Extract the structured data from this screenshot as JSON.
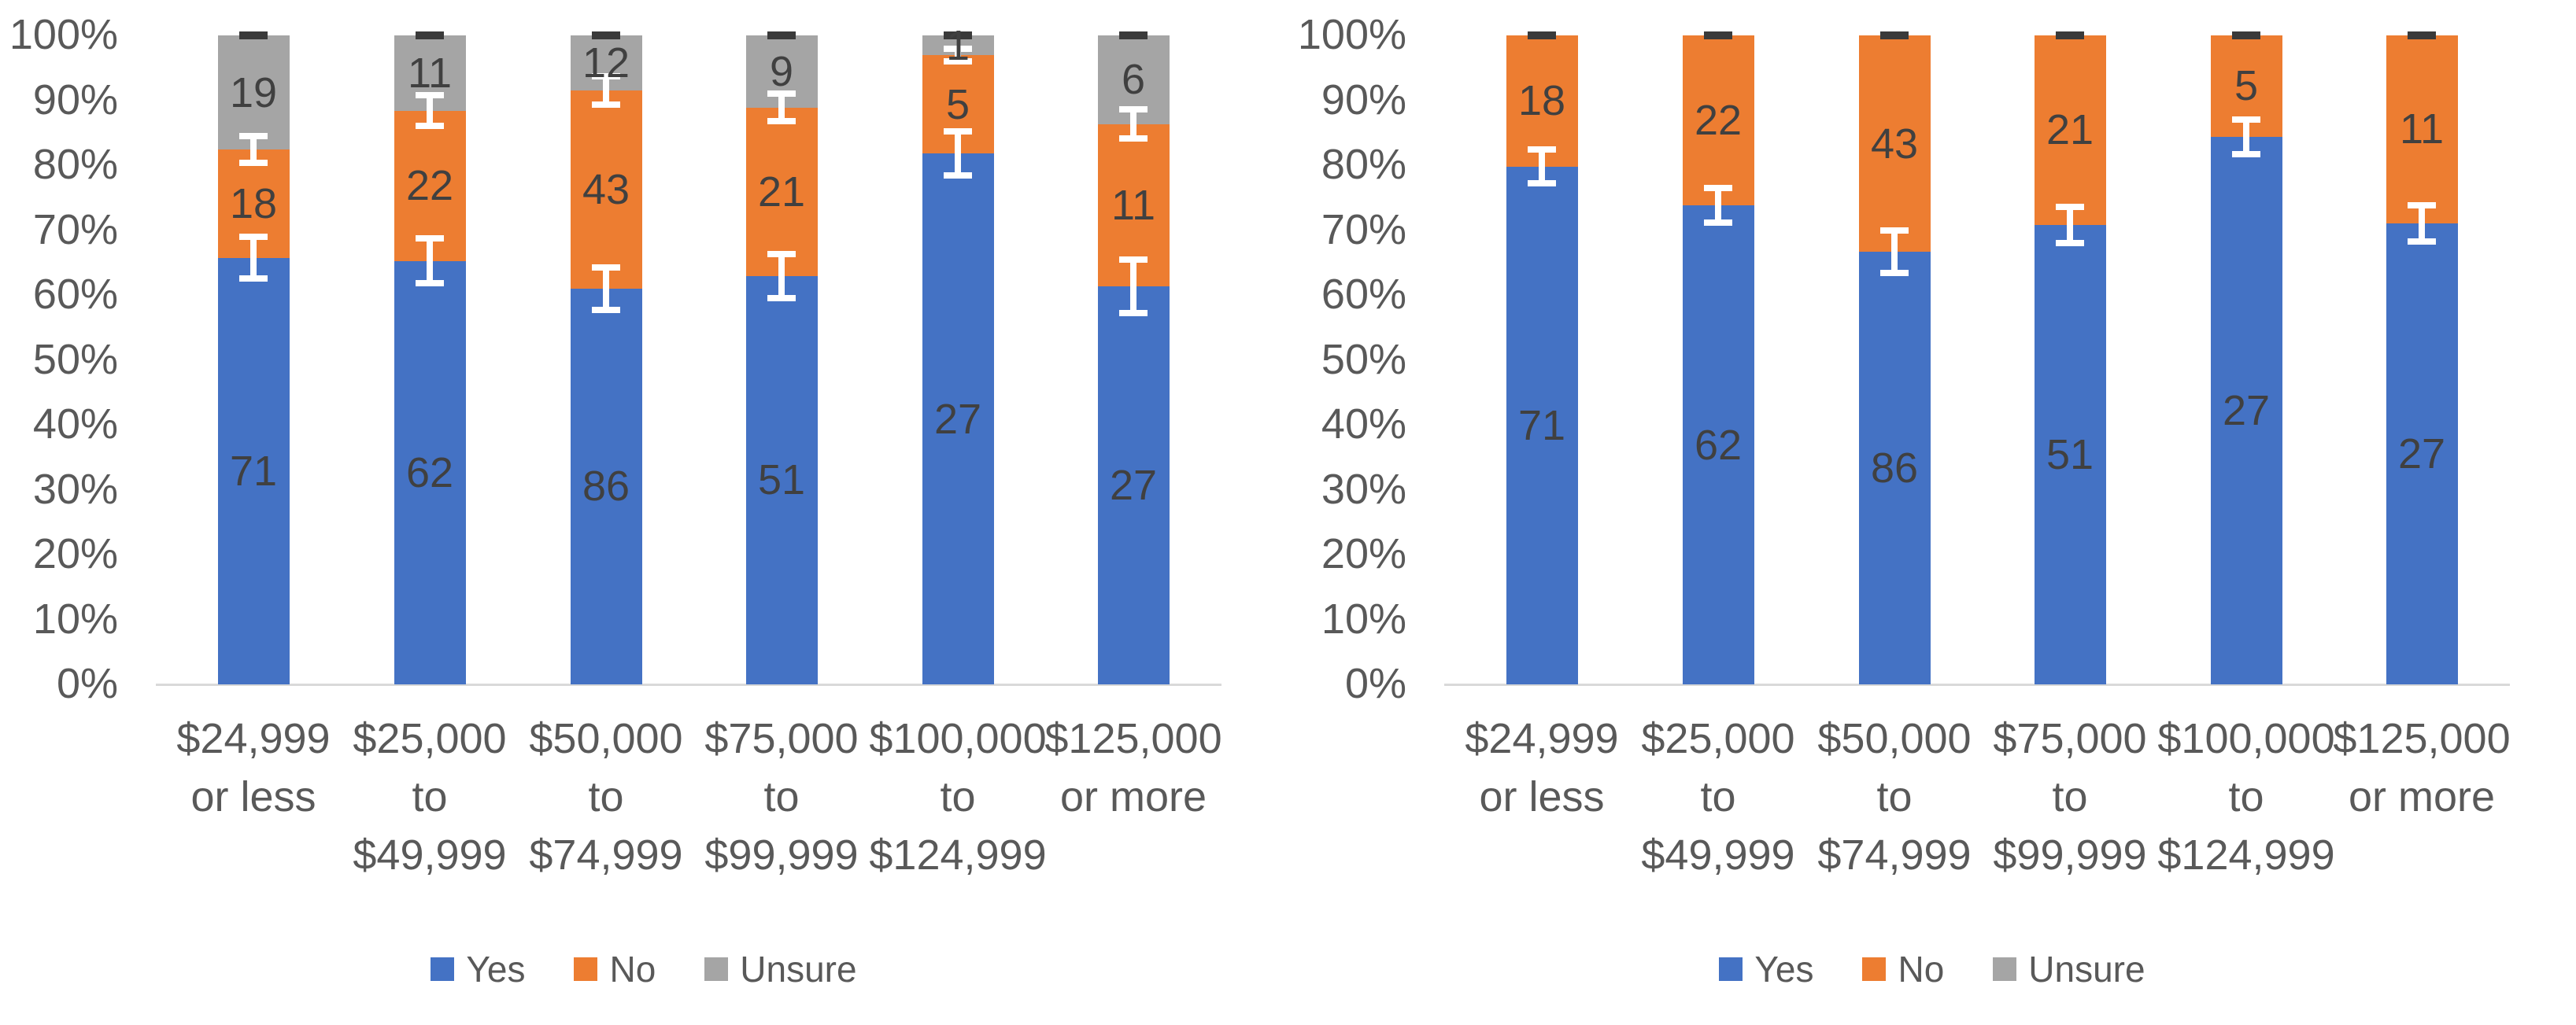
{
  "figure": {
    "background": "#ffffff",
    "axis_label_color": "#595959",
    "value_label_color": "#404040",
    "baseline_color": "#d9d9d9",
    "error_bar_color": "#ffffff",
    "top_cap_color": "#3a3a3a"
  },
  "y_axis": {
    "ticks": [
      "0%",
      "10%",
      "20%",
      "30%",
      "40%",
      "50%",
      "60%",
      "70%",
      "80%",
      "90%",
      "100%"
    ]
  },
  "legend": {
    "items": [
      {
        "label": "Yes",
        "color": "#4472C4"
      },
      {
        "label": "No",
        "color": "#ED7D31"
      },
      {
        "label": "Unsure",
        "color": "#A5A5A5"
      }
    ]
  },
  "chart_data": [
    {
      "type": "bar",
      "subtype": "stacked-100pct",
      "position": "left",
      "title": "",
      "xlabel": "",
      "ylabel": "",
      "ylim": [
        "0%",
        "100%"
      ],
      "grid": false,
      "legend_position": "bottom",
      "categories": [
        [
          "$24,999",
          "or less"
        ],
        [
          "$25,000",
          "to",
          "$49,999"
        ],
        [
          "$50,000",
          "to",
          "$74,999"
        ],
        [
          "$75,000",
          "to",
          "$99,999"
        ],
        [
          "$100,000",
          "to",
          "$124,999"
        ],
        [
          "$125,000",
          "or more"
        ]
      ],
      "series": [
        {
          "name": "Yes",
          "color": "#4472C4",
          "show_labels": true,
          "values": [
            71,
            62,
            86,
            51,
            27,
            27
          ]
        },
        {
          "name": "No",
          "color": "#ED7D31",
          "show_labels": true,
          "values": [
            18,
            22,
            43,
            21,
            5,
            11
          ]
        },
        {
          "name": "Unsure",
          "color": "#A5A5A5",
          "show_labels": true,
          "values": [
            19,
            11,
            12,
            9,
            1,
            6
          ]
        }
      ],
      "note": "segments drawn as value/column-total*100 percent",
      "error_bars": {
        "yes_boundary_halfwidth_pct": [
          3.2,
          3.5,
          3.3,
          3.4,
          3.4,
          4.1
        ],
        "no_boundary_halfwidth_pct": [
          2.1,
          2.4,
          2.2,
          2.1,
          1.0,
          2.3
        ],
        "top_cap_at_100": true
      }
    },
    {
      "type": "bar",
      "subtype": "stacked-100pct",
      "position": "right",
      "title": "",
      "xlabel": "",
      "ylabel": "",
      "ylim": [
        "0%",
        "100%"
      ],
      "grid": false,
      "legend_position": "bottom",
      "categories": [
        [
          "$24,999",
          "or less"
        ],
        [
          "$25,000",
          "to",
          "$49,999"
        ],
        [
          "$50,000",
          "to",
          "$74,999"
        ],
        [
          "$75,000",
          "to",
          "$99,999"
        ],
        [
          "$100,000",
          "to",
          "$124,999"
        ],
        [
          "$125,000",
          "or more"
        ]
      ],
      "series": [
        {
          "name": "Yes",
          "color": "#4472C4",
          "show_labels": true,
          "values": [
            71,
            62,
            86,
            51,
            27,
            27
          ]
        },
        {
          "name": "No",
          "color": "#ED7D31",
          "show_labels": true,
          "values": [
            18,
            22,
            43,
            21,
            5,
            11
          ]
        },
        {
          "name": "Unsure",
          "color": "#A5A5A5",
          "show_labels": false,
          "values": [
            0,
            0,
            0,
            0,
            0,
            0
          ]
        }
      ],
      "note": "segments drawn as value/column-total*100 percent",
      "error_bars": {
        "yes_boundary_halfwidth_pct": [
          2.6,
          2.7,
          3.3,
          2.8,
          2.7,
          2.8
        ],
        "no_boundary_halfwidth_pct": null,
        "top_cap_at_100": true
      }
    }
  ]
}
